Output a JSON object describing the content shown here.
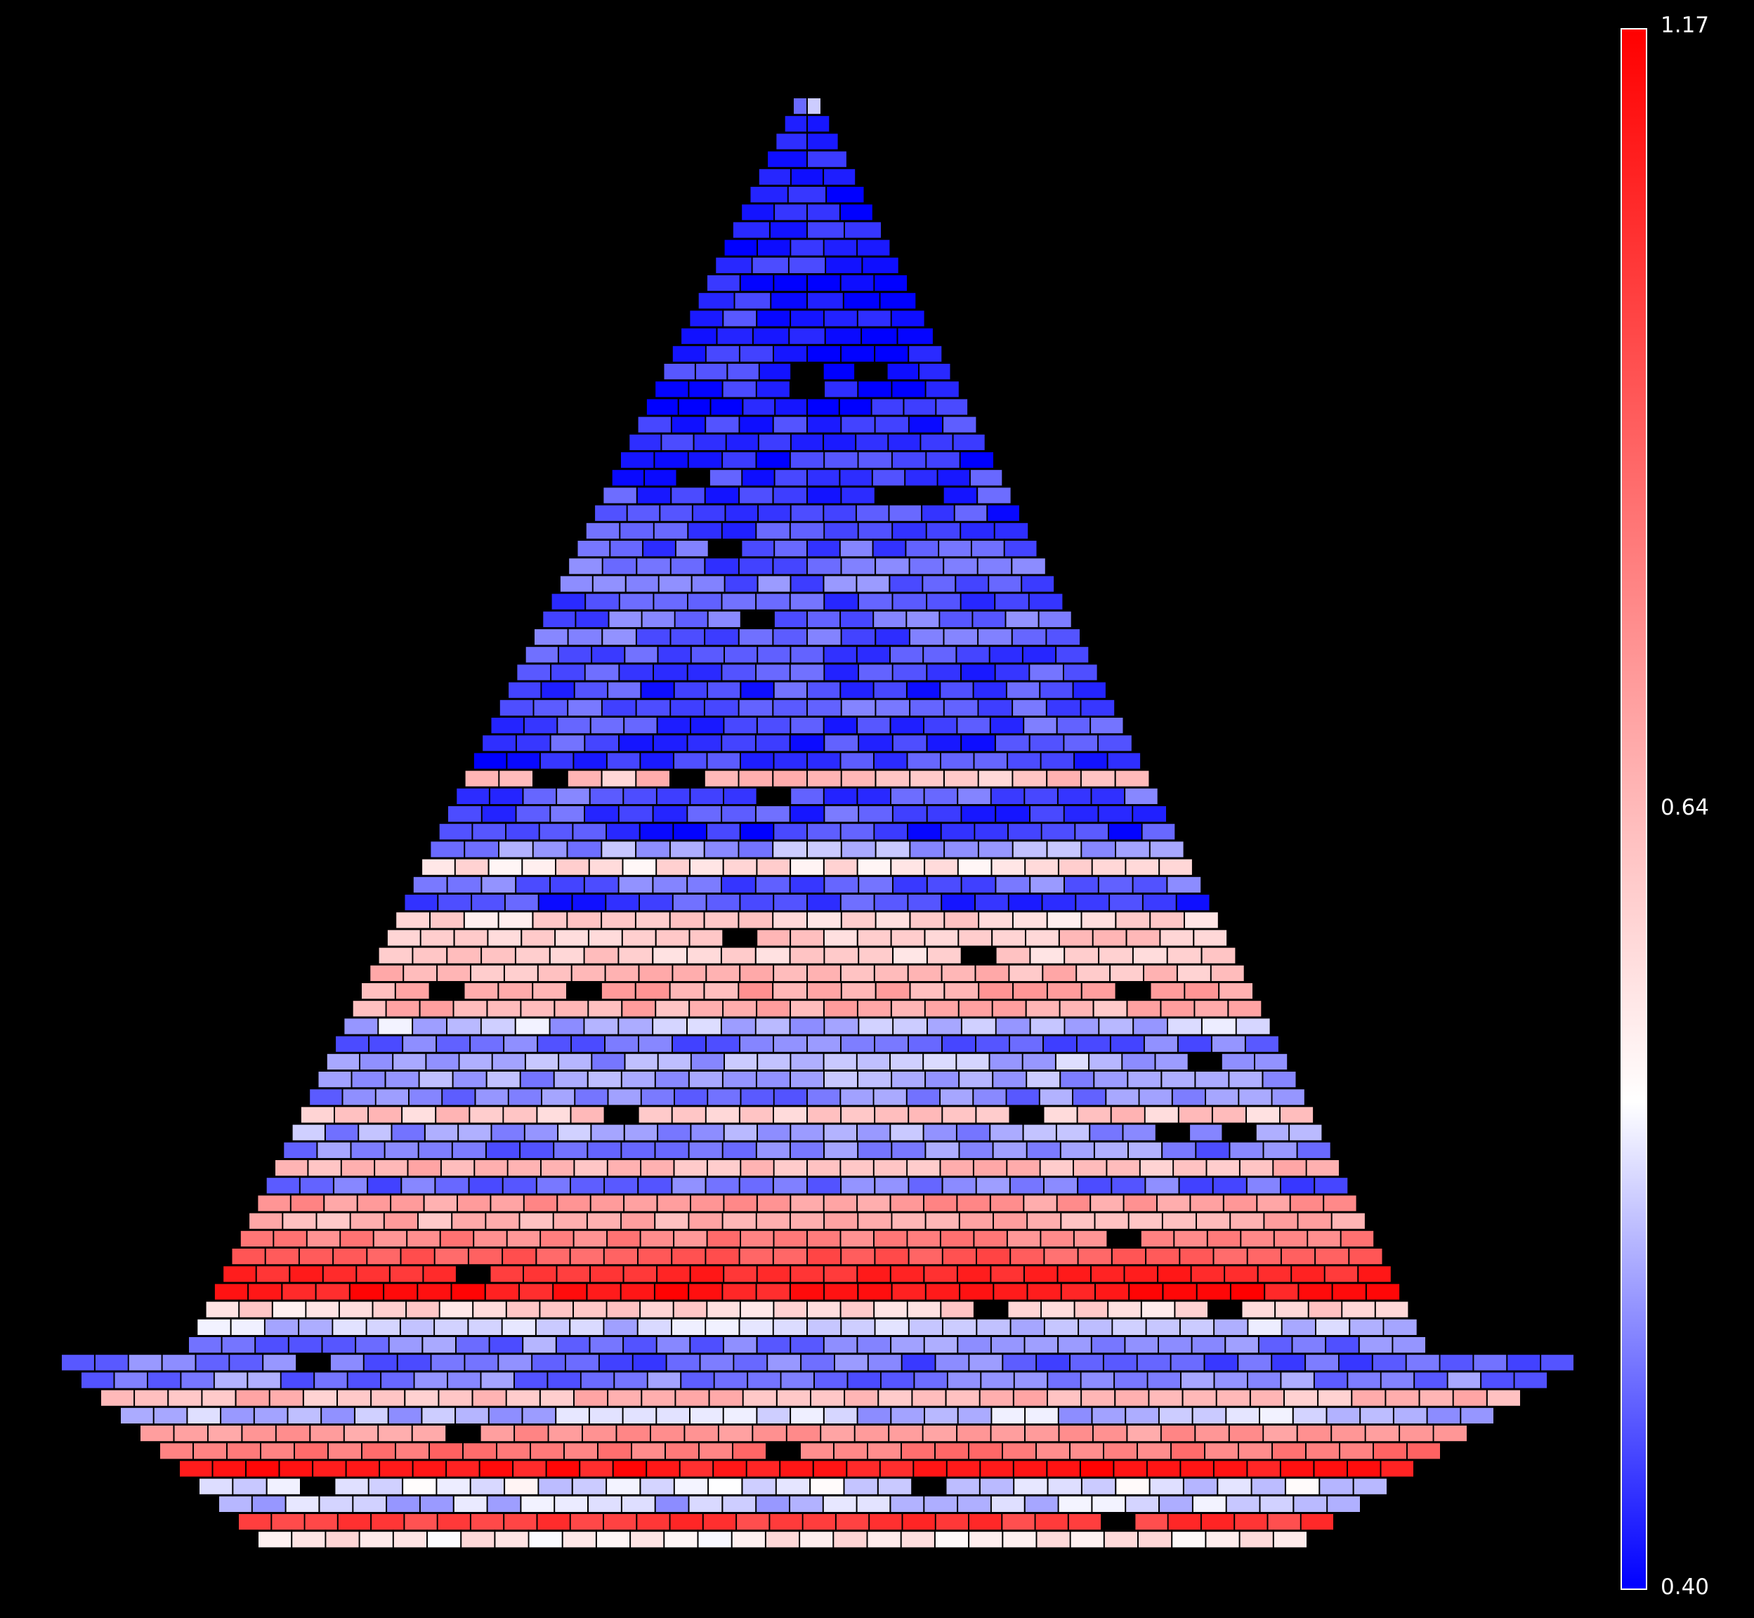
{
  "chart_data": {
    "type": "heatmap",
    "title": "",
    "xlabel": "",
    "ylabel": "",
    "colorbar": {
      "min": 0.4,
      "mid": 0.64,
      "max": 1.17,
      "min_label": "0.40",
      "mid_label": "0.64",
      "max_label": "1.17",
      "colors": {
        "low": "#0000ff",
        "mid": "#ffffff",
        "high": "#ff0000"
      },
      "placement": "right"
    },
    "background": "#000000",
    "row_values_top_to_bottom": [
      0.55,
      0.45,
      0.42,
      0.43,
      0.41,
      0.42,
      0.43,
      0.42,
      0.41,
      0.43,
      0.42,
      0.43,
      0.44,
      0.42,
      0.43,
      0.44,
      0.43,
      0.42,
      0.44,
      0.43,
      0.44,
      0.45,
      0.46,
      0.45,
      0.47,
      0.48,
      0.49,
      0.5,
      0.48,
      0.5,
      0.49,
      0.48,
      0.47,
      0.46,
      0.48,
      0.47,
      0.46,
      0.45,
      0.77,
      0.48,
      0.47,
      0.45,
      0.55,
      0.7,
      0.5,
      0.46,
      0.72,
      0.75,
      0.73,
      0.78,
      0.82,
      0.8,
      0.58,
      0.5,
      0.56,
      0.55,
      0.52,
      0.75,
      0.55,
      0.52,
      0.78,
      0.5,
      0.85,
      0.8,
      0.9,
      0.98,
      1.08,
      1.12,
      0.72,
      0.6,
      0.52,
      0.5,
      0.52,
      0.78,
      0.58,
      0.85,
      0.92,
      1.12,
      0.62,
      0.58,
      1.05,
      0.68
    ]
  }
}
